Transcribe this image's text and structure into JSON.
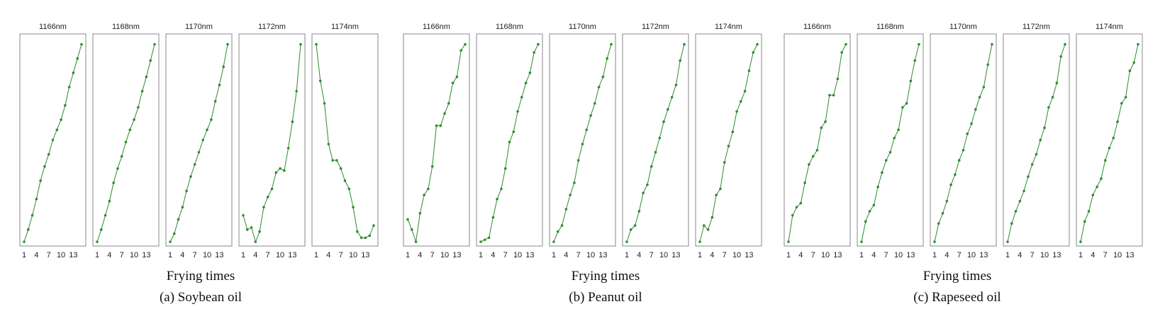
{
  "chart_data": [
    {
      "type": "line",
      "caption": "(a) Soybean oil",
      "xlabel": "Frying times",
      "xticks": [
        1,
        4,
        7,
        10,
        13
      ],
      "x": [
        1,
        2,
        3,
        4,
        5,
        6,
        7,
        8,
        9,
        10,
        11,
        12,
        13,
        14,
        15
      ],
      "color": "#2e8b2e",
      "panels": [
        {
          "title": "1166nm",
          "values": [
            0.0,
            0.06,
            0.13,
            0.21,
            0.3,
            0.37,
            0.43,
            0.5,
            0.55,
            0.6,
            0.67,
            0.76,
            0.83,
            0.9,
            0.97
          ]
        },
        {
          "title": "1168nm",
          "values": [
            0.0,
            0.06,
            0.13,
            0.2,
            0.29,
            0.36,
            0.42,
            0.49,
            0.55,
            0.6,
            0.66,
            0.74,
            0.81,
            0.89,
            0.97
          ]
        },
        {
          "title": "1170nm",
          "values": [
            0.0,
            0.04,
            0.11,
            0.17,
            0.25,
            0.32,
            0.38,
            0.44,
            0.5,
            0.55,
            0.6,
            0.69,
            0.77,
            0.86,
            0.97
          ]
        },
        {
          "title": "1172nm",
          "values": [
            0.13,
            0.06,
            0.07,
            0.0,
            0.05,
            0.17,
            0.22,
            0.26,
            0.34,
            0.36,
            0.35,
            0.46,
            0.59,
            0.74,
            0.97
          ]
        },
        {
          "title": "1174nm",
          "values": [
            0.97,
            0.79,
            0.68,
            0.48,
            0.4,
            0.4,
            0.36,
            0.3,
            0.26,
            0.17,
            0.05,
            0.02,
            0.02,
            0.03,
            0.08
          ]
        }
      ]
    },
    {
      "type": "line",
      "caption": "(b) Peanut oil",
      "xlabel": "Frying times",
      "xticks": [
        1,
        4,
        7,
        10,
        13
      ],
      "x": [
        1,
        2,
        3,
        4,
        5,
        6,
        7,
        8,
        9,
        10,
        11,
        12,
        13,
        14,
        15
      ],
      "color": "#2e8b2e",
      "panels": [
        {
          "title": "1166nm",
          "values": [
            0.11,
            0.06,
            0.0,
            0.14,
            0.23,
            0.26,
            0.37,
            0.57,
            0.57,
            0.63,
            0.68,
            0.78,
            0.81,
            0.94,
            0.97
          ]
        },
        {
          "title": "1168nm",
          "values": [
            0.0,
            0.01,
            0.02,
            0.12,
            0.21,
            0.26,
            0.36,
            0.49,
            0.54,
            0.64,
            0.71,
            0.78,
            0.83,
            0.93,
            0.97
          ]
        },
        {
          "title": "1170nm",
          "values": [
            0.0,
            0.05,
            0.08,
            0.16,
            0.23,
            0.29,
            0.4,
            0.48,
            0.55,
            0.62,
            0.68,
            0.76,
            0.81,
            0.9,
            0.97
          ]
        },
        {
          "title": "1172nm",
          "values": [
            0.0,
            0.06,
            0.08,
            0.15,
            0.24,
            0.28,
            0.37,
            0.44,
            0.51,
            0.59,
            0.65,
            0.71,
            0.77,
            0.89,
            0.97
          ]
        },
        {
          "title": "1174nm",
          "values": [
            0.0,
            0.08,
            0.06,
            0.12,
            0.23,
            0.26,
            0.39,
            0.47,
            0.54,
            0.64,
            0.69,
            0.74,
            0.84,
            0.93,
            0.97
          ]
        }
      ]
    },
    {
      "type": "line",
      "caption": "(c) Rapeseed oil",
      "xlabel": "Frying times",
      "xticks": [
        1,
        4,
        7,
        10,
        13
      ],
      "x": [
        1,
        2,
        3,
        4,
        5,
        6,
        7,
        8,
        9,
        10,
        11,
        12,
        13,
        14,
        15
      ],
      "color": "#2e8b2e",
      "panels": [
        {
          "title": "1166nm",
          "values": [
            0.0,
            0.13,
            0.17,
            0.19,
            0.29,
            0.38,
            0.42,
            0.45,
            0.56,
            0.59,
            0.72,
            0.72,
            0.8,
            0.93,
            0.97
          ]
        },
        {
          "title": "1168nm",
          "values": [
            0.0,
            0.1,
            0.15,
            0.18,
            0.27,
            0.34,
            0.4,
            0.44,
            0.51,
            0.55,
            0.66,
            0.68,
            0.79,
            0.89,
            0.97
          ]
        },
        {
          "title": "1170nm",
          "values": [
            0.0,
            0.09,
            0.14,
            0.2,
            0.28,
            0.33,
            0.4,
            0.45,
            0.53,
            0.58,
            0.65,
            0.71,
            0.76,
            0.87,
            0.97
          ]
        },
        {
          "title": "1172nm",
          "values": [
            0.0,
            0.09,
            0.15,
            0.2,
            0.25,
            0.32,
            0.38,
            0.43,
            0.5,
            0.56,
            0.66,
            0.71,
            0.78,
            0.91,
            0.97
          ]
        },
        {
          "title": "1174nm",
          "values": [
            0.0,
            0.1,
            0.15,
            0.23,
            0.27,
            0.31,
            0.4,
            0.46,
            0.51,
            0.59,
            0.68,
            0.71,
            0.84,
            0.88,
            0.97
          ]
        }
      ]
    }
  ]
}
